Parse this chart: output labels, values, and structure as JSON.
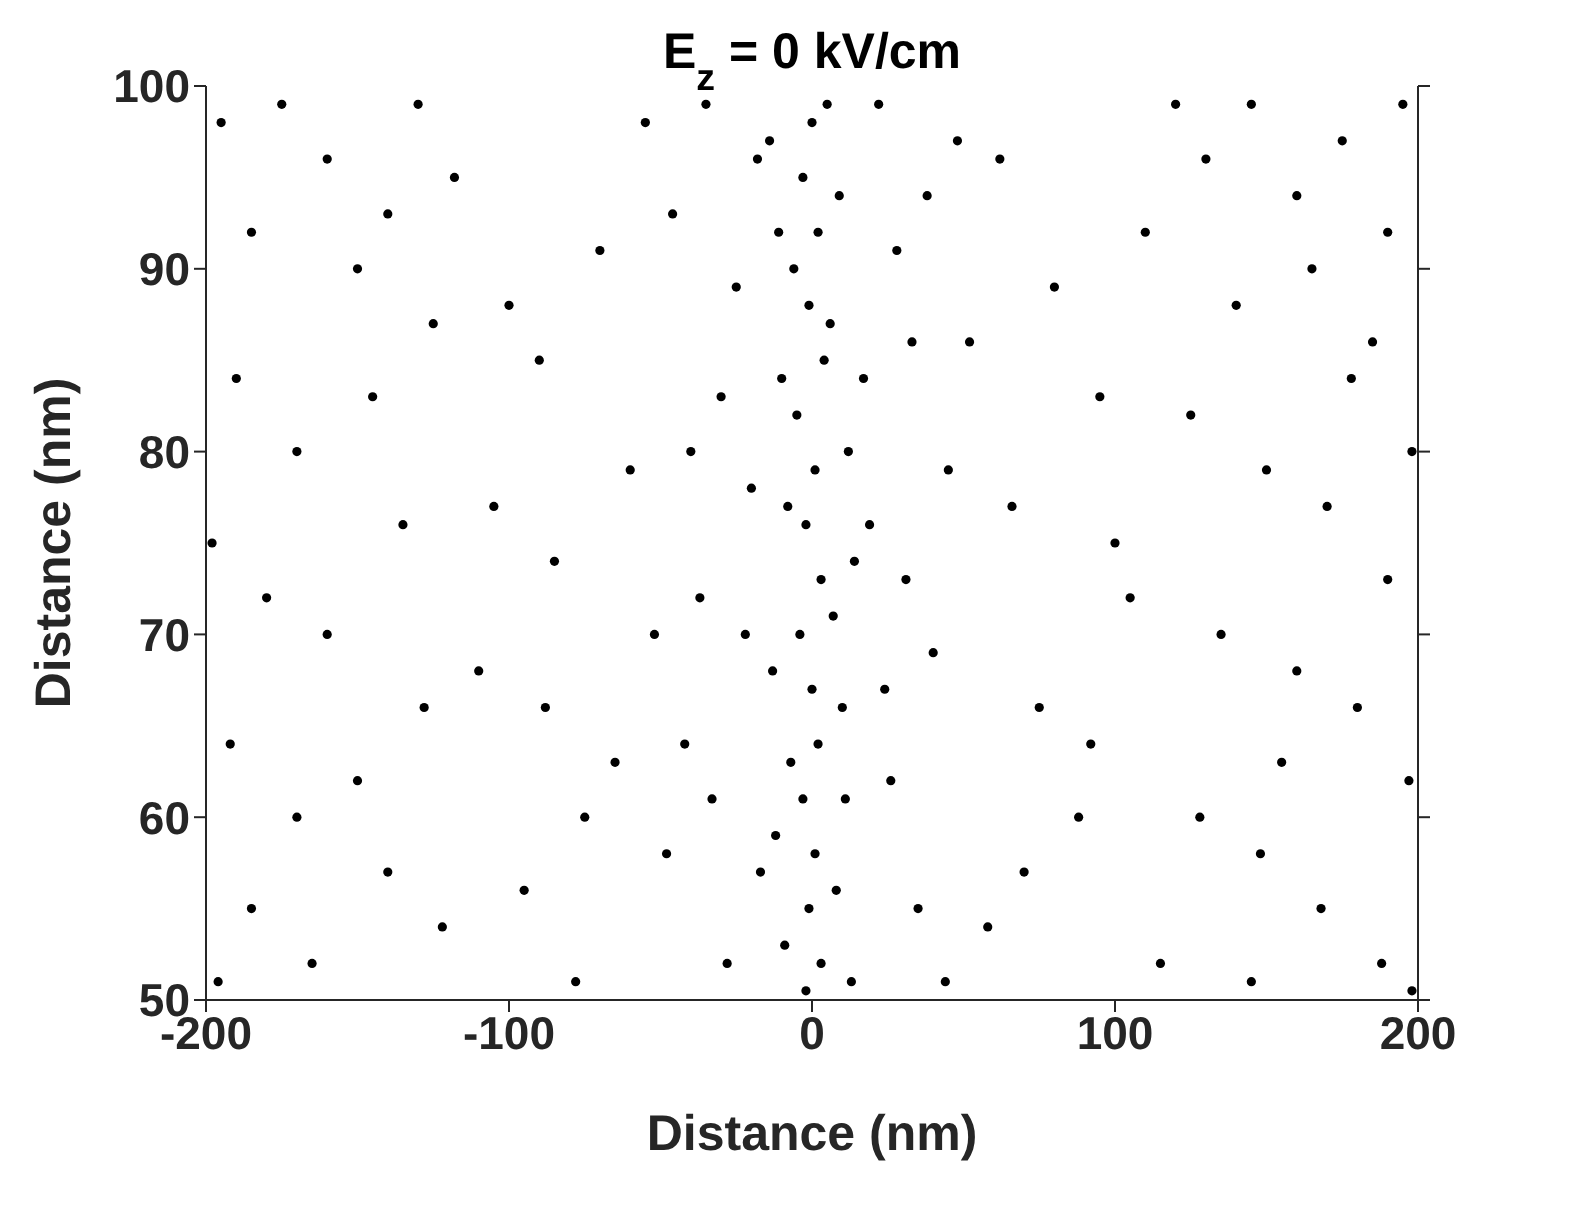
{
  "chart_data": {
    "type": "scatter",
    "title": "E$_{z}$ = 0 kV/cm",
    "xlabel": "Distance (nm)",
    "ylabel": "Distance (nm)",
    "xlim": [
      -200,
      200
    ],
    "xticks": [
      -200,
      -100,
      0,
      100,
      200
    ],
    "ylim": [
      50,
      100
    ],
    "yticks": [
      50,
      60,
      70,
      80,
      90,
      100
    ],
    "grid": false,
    "legend": false,
    "marker": "circle",
    "series": [
      {
        "color": "#000000",
        "x": [
          0,
          -3,
          2,
          -1,
          4,
          -5,
          1,
          -2,
          3,
          -4,
          0,
          2,
          -3,
          1,
          -1,
          3,
          -2,
          5,
          -6,
          6,
          -8,
          7,
          -7,
          8,
          -9,
          9,
          -10,
          10,
          -12,
          12,
          -14,
          14,
          -13,
          13,
          -11,
          11,
          -18,
          22,
          -25,
          28,
          -30,
          33,
          -20,
          19,
          -37,
          40,
          -42,
          26,
          -17,
          35,
          -28,
          44,
          -46,
          48,
          -33,
          17,
          -22,
          31,
          -40,
          45,
          -48,
          24,
          -35,
          38,
          -55,
          62,
          -70,
          80,
          -90,
          95,
          -60,
          66,
          -85,
          105,
          -110,
          75,
          -65,
          88,
          -95,
          58,
          -78,
          115,
          -118,
          120,
          -100,
          110,
          -52,
          52,
          -75,
          92,
          -105,
          70,
          -88,
          100,
          -195,
          -185,
          -175,
          -160,
          -150,
          -140,
          -130,
          -190,
          -170,
          -145,
          -125,
          -198,
          -180,
          -160,
          -135,
          -192,
          -170,
          -150,
          -128,
          -185,
          -165,
          -140,
          -122,
          -196,
          130,
          145,
          160,
          175,
          195,
          190,
          140,
          165,
          185,
          198,
          125,
          150,
          170,
          190,
          135,
          160,
          180,
          197,
          128,
          148,
          168,
          188,
          145,
          198,
          155,
          178
        ],
        "values": [
          98,
          95,
          92,
          88,
          85,
          82,
          79,
          76,
          73,
          70,
          67,
          64,
          61,
          58,
          55,
          52,
          50.5,
          99,
          90,
          87,
          77,
          71,
          63,
          56,
          53,
          94,
          84,
          66,
          59,
          80,
          97,
          74,
          68,
          51,
          92,
          61,
          96,
          99,
          89,
          91,
          83,
          86,
          78,
          76,
          72,
          69,
          64,
          62,
          57,
          55,
          52,
          51,
          93,
          97,
          61,
          84,
          70,
          73,
          80,
          79,
          58,
          67,
          99,
          94,
          98,
          96,
          91,
          89,
          85,
          83,
          79,
          77,
          74,
          72,
          68,
          66,
          63,
          60,
          56,
          54,
          51,
          52,
          95,
          99,
          88,
          92,
          70,
          86,
          60,
          64,
          77,
          57,
          66,
          75,
          98,
          92,
          99,
          96,
          90,
          93,
          99,
          84,
          80,
          83,
          87,
          75,
          72,
          70,
          76,
          64,
          60,
          62,
          66,
          55,
          52,
          57,
          54,
          51,
          96,
          99,
          94,
          97,
          99,
          92,
          88,
          90,
          86,
          80,
          82,
          79,
          77,
          73,
          70,
          68,
          66,
          62,
          60,
          58,
          55,
          52,
          51,
          50.5,
          63,
          84
        ]
      }
    ]
  }
}
